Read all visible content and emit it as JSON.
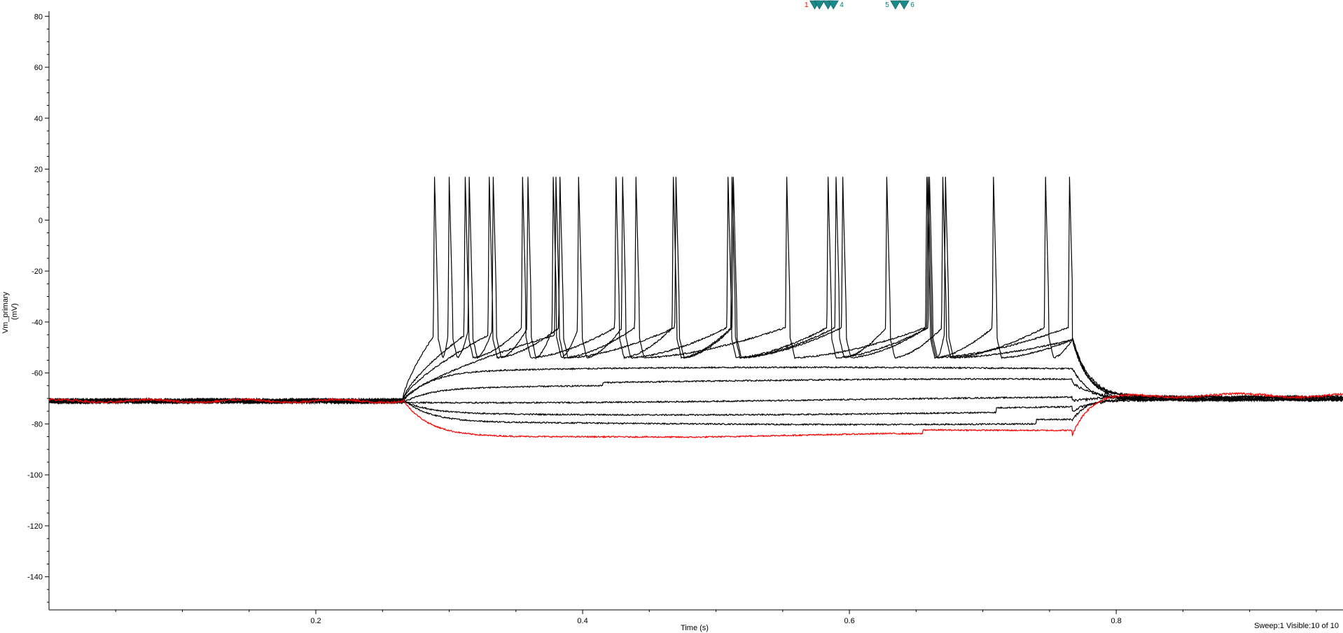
{
  "chart_data": {
    "type": "line",
    "xlabel": "Time (s)",
    "ylabel_lines": [
      "Vm_primary",
      "(mV)"
    ],
    "xlim": [
      0.0,
      0.97
    ],
    "ylim": [
      -153,
      82
    ],
    "x_ticks": [
      0.2,
      0.4,
      0.6,
      0.8
    ],
    "x_tick_labels": [
      "0.2",
      "0.4",
      "0.6",
      "0.8"
    ],
    "y_ticks": [
      80,
      60,
      40,
      20,
      0,
      -20,
      -40,
      -60,
      -80,
      -100,
      -120,
      -140
    ],
    "y_tick_labels": [
      "80",
      "60",
      "40",
      "20",
      "0",
      "-20",
      "-40",
      "-60",
      "-80",
      "-100",
      "-120",
      "-140"
    ],
    "grid": false,
    "stimulus": {
      "onset": 0.265,
      "offset": 0.767
    },
    "series_colors": {
      "highlighted": "#ff0000",
      "other": "#000000"
    },
    "sweeps": [
      {
        "sweep": 1,
        "steady": -86,
        "highlighted": true
      },
      {
        "sweep": 2,
        "steady": -80,
        "highlighted": false
      },
      {
        "sweep": 3,
        "steady": -76,
        "highlighted": false
      },
      {
        "sweep": 4,
        "steady": -71,
        "highlighted": false
      },
      {
        "sweep": 5,
        "steady": -65,
        "highlighted": false
      },
      {
        "sweep": 6,
        "steady": -59,
        "highlighted": false
      },
      {
        "sweep": 7,
        "steady": -51,
        "highlighted": false,
        "spikes": [
          0.38,
          0.44,
          0.553,
          0.658,
          0.765
        ]
      },
      {
        "sweep": 8,
        "steady": -51,
        "highlighted": false,
        "spikes": [
          0.33,
          0.383,
          0.47,
          0.513,
          0.595,
          0.659,
          0.708
        ]
      },
      {
        "sweep": 9,
        "steady": -51,
        "highlighted": false,
        "spikes": [
          0.312,
          0.355,
          0.425,
          0.468,
          0.512,
          0.59,
          0.628,
          0.67,
          0.747
        ]
      },
      {
        "sweep": 10,
        "steady": -51,
        "highlighted": false,
        "spikes": [
          0.289,
          0.3,
          0.315,
          0.333,
          0.359,
          0.378,
          0.397,
          0.43,
          0.509,
          0.584,
          0.66,
          0.672
        ]
      }
    ],
    "baseline_pre": -71,
    "baseline_post": -70,
    "spike_peak": 17,
    "cursors": [
      {
        "label": "1",
        "x": 0.574,
        "color": "#ff0000"
      },
      {
        "label": "2",
        "x": 0.5775,
        "color": "#008080"
      },
      {
        "label": "3",
        "x": 0.584,
        "color": "#008080"
      },
      {
        "label": "4",
        "x": 0.588,
        "color": "#008080"
      },
      {
        "label": "5",
        "x": 0.6345,
        "color": "#008080"
      },
      {
        "label": "6",
        "x": 0.641,
        "color": "#008080"
      }
    ],
    "cursor_marker_color": "#1a8a8a"
  },
  "status": {
    "text": "Sweep:1 Visible:10 of 10"
  }
}
